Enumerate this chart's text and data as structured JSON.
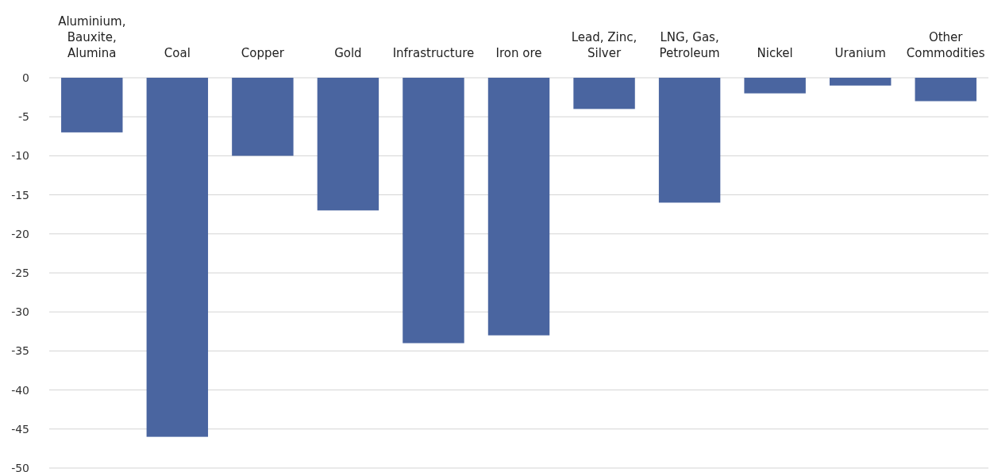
{
  "chart_data": {
    "type": "bar",
    "categories": [
      "Aluminium, Bauxite, Alumina",
      "Coal",
      "Copper",
      "Gold",
      "Infrastructure",
      "Iron ore",
      "Lead, Zinc, Silver",
      "LNG, Gas, Petroleum",
      "Nickel",
      "Uranium",
      "Other Commodities"
    ],
    "values": [
      -7,
      -46,
      -10,
      -17,
      -34,
      -33,
      -4,
      -16,
      -2,
      -1,
      -3
    ],
    "color": "#4a65a0",
    "ylim": [
      -50,
      0
    ],
    "yticks": [
      0,
      -5,
      -10,
      -15,
      -20,
      -25,
      -30,
      -35,
      -40,
      -45,
      -50
    ],
    "grid": "y"
  }
}
